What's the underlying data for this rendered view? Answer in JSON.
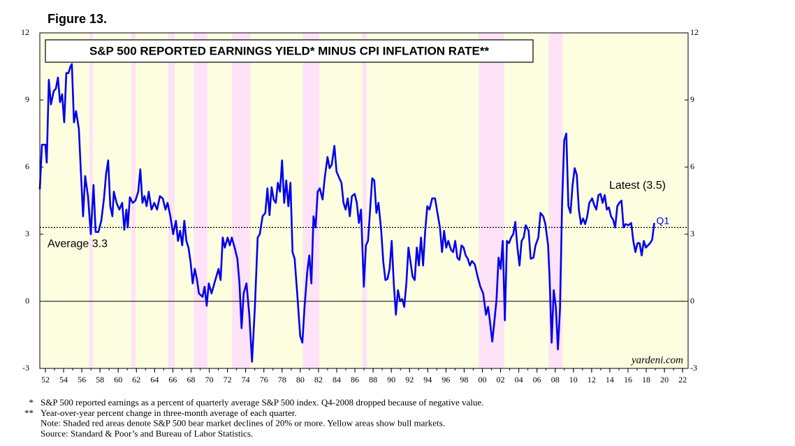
{
  "chart_data": {
    "type": "line",
    "figure_label": "Figure 13.",
    "title": "S&P 500 REPORTED EARNINGS YIELD* MINUS CPI INFLATION RATE**",
    "source_mark": "yardeni.com",
    "color": "#0000ee",
    "bull_color": "#fdfde0",
    "bear_color": "#fde2f8",
    "bear_markets": [
      [
        1956.83,
        1957.22
      ],
      [
        1961.44,
        1961.9
      ],
      [
        1965.5,
        1966.2
      ],
      [
        1968.3,
        1969.8
      ],
      [
        1972.5,
        1974.5
      ],
      [
        1980.3,
        1982.1
      ],
      [
        1986.8,
        1987.3
      ],
      [
        1999.6,
        2002.4
      ],
      [
        2007.3,
        2008.8
      ]
    ],
    "xlim": [
      1951.39,
      2022.6
    ],
    "ylim": [
      -3,
      12
    ],
    "yticks": [
      -3,
      0,
      3,
      6,
      9,
      12
    ],
    "xticks": [
      {
        "value": 1952,
        "label": "52"
      },
      {
        "value": 1954,
        "label": "54"
      },
      {
        "value": 1956,
        "label": "56"
      },
      {
        "value": 1958,
        "label": "58"
      },
      {
        "value": 1960,
        "label": "60"
      },
      {
        "value": 1962,
        "label": "62"
      },
      {
        "value": 1964,
        "label": "64"
      },
      {
        "value": 1966,
        "label": "66"
      },
      {
        "value": 1968,
        "label": "68"
      },
      {
        "value": 1970,
        "label": "70"
      },
      {
        "value": 1972,
        "label": "72"
      },
      {
        "value": 1974,
        "label": "74"
      },
      {
        "value": 1976,
        "label": "76"
      },
      {
        "value": 1978,
        "label": "78"
      },
      {
        "value": 1980,
        "label": "80"
      },
      {
        "value": 1982,
        "label": "82"
      },
      {
        "value": 1984,
        "label": "84"
      },
      {
        "value": 1986,
        "label": "86"
      },
      {
        "value": 1988,
        "label": "88"
      },
      {
        "value": 1990,
        "label": "90"
      },
      {
        "value": 1992,
        "label": "92"
      },
      {
        "value": 1994,
        "label": "94"
      },
      {
        "value": 1996,
        "label": "96"
      },
      {
        "value": 1998,
        "label": "98"
      },
      {
        "value": 2000,
        "label": "00"
      },
      {
        "value": 2002,
        "label": "02"
      },
      {
        "value": 2004,
        "label": "04"
      },
      {
        "value": 2006,
        "label": "06"
      },
      {
        "value": 2008,
        "label": "08"
      },
      {
        "value": 2010,
        "label": "10"
      },
      {
        "value": 2012,
        "label": "12"
      },
      {
        "value": 2014,
        "label": "14"
      },
      {
        "value": 2016,
        "label": "16"
      },
      {
        "value": 2018,
        "label": "18"
      },
      {
        "value": 2020,
        "label": "20"
      },
      {
        "value": 2022,
        "label": "22"
      }
    ],
    "zero_line": true,
    "average": {
      "value": 3.3,
      "label": "Average 3.3"
    },
    "latest": {
      "value": 3.5,
      "label": "Latest (3.5)",
      "period": "Q1"
    },
    "x": [
      1951.39,
      1951.62,
      1952.0,
      1952.15,
      1952.38,
      1952.61,
      1952.92,
      1953.15,
      1953.38,
      1953.61,
      1953.84,
      1954.07,
      1954.3,
      1954.53,
      1954.76,
      1954.91,
      1955.14,
      1955.37,
      1955.68,
      1955.91,
      1956.14,
      1956.37,
      1956.68,
      1956.99,
      1957.29,
      1957.52,
      1957.83,
      1958.14,
      1958.44,
      1958.67,
      1958.9,
      1959.13,
      1959.36,
      1959.52,
      1959.82,
      1960.13,
      1960.44,
      1960.67,
      1960.9,
      1961.05,
      1961.28,
      1961.59,
      1961.89,
      1962.2,
      1962.43,
      1962.66,
      1962.89,
      1963.12,
      1963.35,
      1963.66,
      1963.96,
      1964.27,
      1964.58,
      1964.89,
      1965.19,
      1965.42,
      1965.73,
      1966.04,
      1966.34,
      1966.57,
      1966.8,
      1967.03,
      1967.26,
      1967.49,
      1967.72,
      1967.95,
      1968.18,
      1968.41,
      1968.64,
      1968.87,
      1969.26,
      1969.49,
      1969.72,
      1969.95,
      1970.25,
      1970.56,
      1971.02,
      1971.25,
      1971.48,
      1971.71,
      1972.02,
      1972.25,
      1972.48,
      1972.79,
      1973.09,
      1973.32,
      1973.55,
      1973.78,
      1974.09,
      1974.4,
      1974.7,
      1975.01,
      1975.32,
      1975.55,
      1975.86,
      1976.16,
      1976.39,
      1976.62,
      1976.85,
      1977.08,
      1977.31,
      1977.54,
      1977.77,
      1978.0,
      1978.23,
      1978.46,
      1978.69,
      1978.92,
      1979.15,
      1979.38,
      1979.69,
      1979.99,
      1980.23,
      1980.46,
      1980.76,
      1980.99,
      1981.22,
      1981.45,
      1981.68,
      1981.91,
      1982.14,
      1982.45,
      1982.68,
      1982.99,
      1983.22,
      1983.45,
      1983.75,
      1983.98,
      1984.29,
      1984.52,
      1984.75,
      1984.98,
      1985.21,
      1985.44,
      1985.67,
      1985.98,
      1986.21,
      1986.44,
      1986.67,
      1986.98,
      1987.21,
      1987.44,
      1987.67,
      1987.9,
      1988.13,
      1988.36,
      1988.59,
      1988.89,
      1989.12,
      1989.35,
      1989.58,
      1989.81,
      1990.04,
      1990.27,
      1990.5,
      1990.73,
      1990.96,
      1991.19,
      1991.42,
      1991.65,
      1991.88,
      1992.11,
      1992.34,
      1992.57,
      1992.8,
      1993.03,
      1993.26,
      1993.49,
      1993.72,
      1993.95,
      1994.19,
      1994.49,
      1994.8,
      1995.11,
      1995.34,
      1995.57,
      1995.8,
      1996.03,
      1996.26,
      1996.56,
      1996.79,
      1997.02,
      1997.25,
      1997.48,
      1997.71,
      1997.94,
      1998.17,
      1998.4,
      1998.63,
      1998.86,
      1999.17,
      1999.48,
      1999.78,
      2000.09,
      2000.4,
      2000.63,
      2000.86,
      2001.09,
      2001.32,
      2001.55,
      2001.78,
      2002.01,
      2002.24,
      2002.47,
      2002.7,
      2002.93,
      2003.16,
      2003.39,
      2003.62,
      2003.85,
      2004.08,
      2004.31,
      2004.54,
      2004.77,
      2005.08,
      2005.31,
      2005.61,
      2005.84,
      2006.15,
      2006.38,
      2006.69,
      2006.92,
      2007.22,
      2007.38,
      2007.61,
      2007.84,
      2008.07,
      2008.3,
      2008.53,
      2008.76,
      2008.99,
      2009.22,
      2009.45,
      2009.68,
      2009.91,
      2010.14,
      2010.37,
      2010.6,
      2010.83,
      2011.06,
      2011.29,
      2011.52,
      2011.75,
      2012.06,
      2012.29,
      2012.52,
      2012.75,
      2012.98,
      2013.21,
      2013.44,
      2013.67,
      2013.9,
      2014.13,
      2014.36,
      2014.59,
      2014.82,
      2015.05,
      2015.28,
      2015.51,
      2015.74,
      2016.04,
      2016.35,
      2016.58,
      2016.81,
      2017.04,
      2017.27,
      2017.5,
      2017.73,
      2017.96,
      2018.19,
      2018.42,
      2018.65,
      2018.88
    ],
    "values": [
      5.0,
      7.0,
      7.0,
      6.2,
      9.9,
      8.8,
      9.4,
      9.5,
      10.0,
      8.9,
      9.25,
      8.0,
      10.2,
      10.2,
      10.5,
      10.6,
      8.0,
      8.5,
      7.7,
      5.7,
      3.8,
      5.6,
      4.7,
      3.0,
      5.2,
      3.1,
      3.1,
      3.6,
      4.6,
      5.7,
      6.3,
      4.25,
      3.8,
      4.9,
      4.4,
      4.1,
      4.4,
      3.2,
      4.1,
      3.3,
      4.65,
      4.4,
      4.5,
      4.9,
      5.9,
      4.4,
      4.7,
      4.25,
      4.9,
      4.1,
      4.4,
      4.1,
      4.7,
      4.6,
      4.1,
      4.4,
      3.8,
      3.0,
      3.6,
      2.7,
      3.15,
      2.5,
      3.6,
      2.7,
      2.4,
      1.75,
      0.8,
      1.45,
      1.0,
      0.35,
      0.2,
      0.65,
      -0.2,
      0.8,
      0.35,
      0.8,
      1.45,
      0.95,
      2.85,
      2.4,
      2.85,
      2.5,
      2.85,
      2.4,
      1.9,
      0.8,
      -1.2,
      0.35,
      0.8,
      -0.6,
      -2.7,
      -0.3,
      2.85,
      3.0,
      3.8,
      3.95,
      5.05,
      3.85,
      5.1,
      4.55,
      4.4,
      5.3,
      4.9,
      6.3,
      4.4,
      5.4,
      4.25,
      5.3,
      2.2,
      1.9,
      0.2,
      -1.55,
      -1.85,
      -0.3,
      1.3,
      2.05,
      0.8,
      3.8,
      3.3,
      4.9,
      5.05,
      4.55,
      5.5,
      6.45,
      5.95,
      6.1,
      6.95,
      5.8,
      5.5,
      5.3,
      4.4,
      4.1,
      4.6,
      3.8,
      4.7,
      4.8,
      4.4,
      3.5,
      4.1,
      0.65,
      2.5,
      2.7,
      4.1,
      5.5,
      5.4,
      3.95,
      4.4,
      3.15,
      1.75,
      0.95,
      1.0,
      1.45,
      2.7,
      0.8,
      -0.6,
      0.5,
      0,
      0.1,
      -0.25,
      0.8,
      2.4,
      1.75,
      1.1,
      0.95,
      2.4,
      1.6,
      2.85,
      1.6,
      3.15,
      4.25,
      4.1,
      4.6,
      4.6,
      3.85,
      3.3,
      2.2,
      3.15,
      2.4,
      2.7,
      2.3,
      2.2,
      2.7,
      1.95,
      1.85,
      2.5,
      2.4,
      2.05,
      1.9,
      1.6,
      1.8,
      1.65,
      1.1,
      0.65,
      0.35,
      -0.6,
      -0.25,
      -1.0,
      -1.8,
      -0.9,
      0.05,
      1.95,
      1.45,
      2.7,
      -0.85,
      2.7,
      2.6,
      2.85,
      3.0,
      3.55,
      2.4,
      1.6,
      2.7,
      2.85,
      3.4,
      3.15,
      1.9,
      1.95,
      2.5,
      2.85,
      3.95,
      3.8,
      3.45,
      2.5,
      1.1,
      -1.85,
      0.5,
      -0.25,
      -2.15,
      -0.3,
      4.4,
      7.2,
      7.5,
      4.25,
      3.95,
      5.2,
      5.95,
      5.65,
      4.1,
      3.45,
      3.7,
      3.45,
      3.8,
      4.4,
      4.6,
      4.3,
      4.1,
      4.75,
      4.8,
      4.4,
      4.75,
      4.1,
      4.2,
      3.8,
      3.65,
      3.3,
      4.25,
      4.4,
      4.5,
      3.3,
      3.45,
      3.4,
      3.5,
      2.7,
      2.2,
      2.6,
      2.6,
      2.05,
      2.7,
      2.4,
      2.5,
      2.6,
      2.75,
      3.5
    ],
    "footnotes": [
      {
        "marker": "*",
        "text": "S&P 500 reported earnings as a percent of quarterly average S&P 500 index. Q4-2008 dropped because of negative value."
      },
      {
        "marker": "**",
        "text": "Year-over-year percent change in three-month average of each quarter."
      },
      {
        "text": "Note: Shaded red areas denote S&P 500 bear market declines of 20% or more. Yellow areas show bull markets."
      },
      {
        "text": "Source: Standard & Poor’s and Bureau of Labor Statistics."
      }
    ]
  }
}
